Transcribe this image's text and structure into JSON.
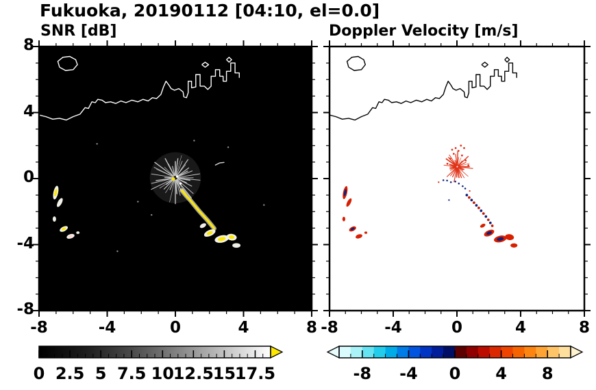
{
  "title": "Fukuoka, 20190112 [04:10, el=0.0]",
  "coastline_km": [
    [
      [
        -6.8,
        6.75
      ],
      [
        -6.9,
        7.1
      ],
      [
        -6.6,
        7.35
      ],
      [
        -6.2,
        7.4
      ],
      [
        -5.85,
        7.2
      ],
      [
        -5.75,
        6.9
      ],
      [
        -6.0,
        6.6
      ],
      [
        -6.45,
        6.55
      ],
      [
        -6.8,
        6.75
      ]
    ],
    [
      [
        -8.0,
        3.85
      ],
      [
        -7.6,
        3.75
      ],
      [
        -7.2,
        3.6
      ],
      [
        -6.8,
        3.65
      ],
      [
        -6.4,
        3.55
      ],
      [
        -6.0,
        3.75
      ],
      [
        -5.6,
        3.9
      ],
      [
        -5.3,
        4.3
      ],
      [
        -5.1,
        4.25
      ],
      [
        -4.9,
        4.65
      ],
      [
        -4.7,
        4.6
      ],
      [
        -4.55,
        4.8
      ],
      [
        -4.3,
        4.75
      ],
      [
        -4.1,
        4.6
      ],
      [
        -3.8,
        4.65
      ],
      [
        -3.5,
        4.55
      ],
      [
        -3.2,
        4.7
      ],
      [
        -2.9,
        4.6
      ],
      [
        -2.55,
        4.75
      ],
      [
        -2.2,
        4.65
      ],
      [
        -1.9,
        4.8
      ],
      [
        -1.6,
        4.7
      ],
      [
        -1.35,
        4.9
      ],
      [
        -1.1,
        4.85
      ],
      [
        -0.85,
        5.1
      ],
      [
        -0.7,
        5.55
      ],
      [
        -0.55,
        5.9
      ],
      [
        -0.4,
        5.7
      ],
      [
        -0.25,
        5.45
      ],
      [
        -0.05,
        5.35
      ],
      [
        0.2,
        5.45
      ],
      [
        0.45,
        5.25
      ],
      [
        0.5,
        4.95
      ],
      [
        0.65,
        4.9
      ],
      [
        0.75,
        5.2
      ],
      [
        0.75,
        5.9
      ],
      [
        0.95,
        5.9
      ],
      [
        0.95,
        5.5
      ],
      [
        1.2,
        5.55
      ],
      [
        1.2,
        6.3
      ],
      [
        1.45,
        6.3
      ],
      [
        1.45,
        5.6
      ],
      [
        1.7,
        5.6
      ],
      [
        1.9,
        5.4
      ],
      [
        2.1,
        5.6
      ],
      [
        2.1,
        6.2
      ],
      [
        2.35,
        6.2
      ],
      [
        2.35,
        6.6
      ],
      [
        2.6,
        6.6
      ],
      [
        2.6,
        6.2
      ],
      [
        2.8,
        6.2
      ],
      [
        2.8,
        5.9
      ],
      [
        3.0,
        5.9
      ],
      [
        3.0,
        6.5
      ],
      [
        3.25,
        6.5
      ],
      [
        3.25,
        7.0
      ],
      [
        3.5,
        7.0
      ],
      [
        3.5,
        6.4
      ],
      [
        3.75,
        6.4
      ],
      [
        3.75,
        6.1
      ]
    ],
    [
      [
        1.55,
        6.9
      ],
      [
        1.75,
        7.05
      ],
      [
        1.95,
        6.9
      ],
      [
        1.75,
        6.75
      ],
      [
        1.55,
        6.9
      ]
    ],
    [
      [
        3.0,
        7.2
      ],
      [
        3.15,
        7.35
      ],
      [
        3.3,
        7.2
      ],
      [
        3.15,
        7.05
      ],
      [
        3.0,
        7.2
      ]
    ]
  ],
  "chart_data": [
    {
      "id": "snr",
      "type": "heatmap",
      "title": "SNR [dB]",
      "xlim": [
        -8,
        8
      ],
      "ylim": [
        -8,
        8
      ],
      "xticks": [
        -8,
        -4,
        0,
        4,
        8
      ],
      "xtick_labels": [
        "-8",
        "-4",
        "0",
        "4",
        "8"
      ],
      "yticks": [
        -8,
        -4,
        0,
        4,
        8
      ],
      "ytick_labels": [
        "-8",
        "-4",
        "0",
        "4",
        "8"
      ],
      "grid": false,
      "background": "#000000",
      "coast_color": "#ffffff",
      "colorbar": {
        "range": [
          0,
          18.75
        ],
        "major_ticks": [
          0,
          2.5,
          5,
          7.5,
          10,
          12.5,
          15,
          17.5
        ],
        "labels": [
          "0",
          "2.5",
          "5",
          "7.5",
          "10",
          "12.5",
          "15",
          "17.5"
        ],
        "minor_step": 0.625,
        "stops": [
          "#000000",
          "#1c1c1c",
          "#4a4a4a",
          "#848484",
          "#c2c2c2",
          "#ffffff"
        ],
        "arrow_right": "#ffe800"
      },
      "features": [
        {
          "type": "halo",
          "x": 0,
          "y": 0.05,
          "r": 1.5,
          "color": "rgba(140,140,140,0.18)"
        },
        {
          "type": "starburst",
          "x": 0,
          "y": 0.05,
          "rays": 40,
          "r_in": 0.12,
          "r_out": 1.6,
          "width": 1.1,
          "color": "#c4c4c4",
          "seed": 11
        },
        {
          "type": "dots",
          "r": 0.1,
          "color": "#ffe800",
          "pts": [
            [
              -0.12,
              -0.02
            ]
          ]
        },
        {
          "type": "dots",
          "r": 0.07,
          "color": "#ffffff",
          "pts": [
            [
              0.1,
              0.12
            ],
            [
              0.3,
              -0.3
            ]
          ]
        },
        {
          "type": "polyline",
          "color": "#ffe800",
          "halo": "#e8e8e0",
          "width": 3,
          "pts": [
            [
              0.38,
              -0.72
            ],
            [
              0.62,
              -1.02
            ],
            [
              0.88,
              -1.32
            ],
            [
              1.12,
              -1.62
            ],
            [
              1.38,
              -1.95
            ],
            [
              1.62,
              -2.22
            ],
            [
              1.88,
              -2.52
            ],
            [
              2.12,
              -2.82
            ],
            [
              2.28,
              -3.02
            ]
          ]
        },
        {
          "type": "blob",
          "x": 2.02,
          "y": -3.3,
          "rx": 0.36,
          "ry": 0.18,
          "rot": -25,
          "fill": "#f2f2ea",
          "core": "#ffe800"
        },
        {
          "type": "blob",
          "x": 2.72,
          "y": -3.66,
          "rx": 0.42,
          "ry": 0.22,
          "rot": -12,
          "fill": "#f2f2ea",
          "core": "#ffe800"
        },
        {
          "type": "blob",
          "x": 3.3,
          "y": -3.55,
          "rx": 0.3,
          "ry": 0.2,
          "rot": 8,
          "fill": "#f2f2ea",
          "core": "#ffe800"
        },
        {
          "type": "blob",
          "x": 3.58,
          "y": -4.05,
          "rx": 0.24,
          "ry": 0.14,
          "rot": 0,
          "fill": "#eeeee6"
        },
        {
          "type": "blob",
          "x": 1.62,
          "y": -2.85,
          "rx": 0.2,
          "ry": 0.12,
          "rot": -30,
          "fill": "#eeeee6"
        },
        {
          "type": "blob",
          "x": -7.02,
          "y": -0.85,
          "rx": 0.14,
          "ry": 0.42,
          "rot": 12,
          "fill": "#f2f2ea",
          "core": "#ffe800"
        },
        {
          "type": "blob",
          "x": -6.78,
          "y": -1.45,
          "rx": 0.12,
          "ry": 0.3,
          "rot": 28,
          "fill": "#f2f2ea"
        },
        {
          "type": "blob",
          "x": -7.1,
          "y": -2.45,
          "rx": 0.1,
          "ry": 0.16,
          "rot": 0,
          "fill": "#eeeee6"
        },
        {
          "type": "blob",
          "x": -6.55,
          "y": -3.05,
          "rx": 0.26,
          "ry": 0.14,
          "rot": -28,
          "fill": "#f2f2ea",
          "core": "#ffe800"
        },
        {
          "type": "blob",
          "x": -6.15,
          "y": -3.5,
          "rx": 0.24,
          "ry": 0.13,
          "rot": -18,
          "fill": "#f2f2ea",
          "core": "#ffd2d2"
        },
        {
          "type": "blob",
          "x": -5.72,
          "y": -3.28,
          "rx": 0.1,
          "ry": 0.08,
          "rot": 0,
          "fill": "#eeeee6"
        },
        {
          "type": "polyline",
          "color": "#cccccc",
          "width": 1.5,
          "pts": [
            [
              2.35,
              0.82
            ],
            [
              2.6,
              0.95
            ],
            [
              2.85,
              0.98
            ]
          ]
        },
        {
          "type": "dots",
          "r": 0.05,
          "color": "#8a8a8a",
          "pts": [
            [
              -1.4,
              -2.2
            ],
            [
              -2.2,
              -1.4
            ],
            [
              3.1,
              1.9
            ],
            [
              -3.4,
              -4.4
            ],
            [
              1.1,
              2.3
            ],
            [
              -4.6,
              2.1
            ],
            [
              5.2,
              -1.6
            ]
          ]
        }
      ]
    },
    {
      "id": "doppler",
      "type": "heatmap",
      "title": "Doppler Velocity [m/s]",
      "xlim": [
        -8,
        8
      ],
      "ylim": [
        -8,
        8
      ],
      "xticks": [
        -8,
        -4,
        0,
        4,
        8
      ],
      "xtick_labels": [
        "-8",
        "-4",
        "0",
        "4",
        "8"
      ],
      "yticks": [
        -8,
        -4,
        0,
        4,
        8
      ],
      "ytick_labels": [],
      "grid": false,
      "background": "#ffffff",
      "coast_color": "#000000",
      "colorbar": {
        "range": [
          -10,
          10
        ],
        "major_ticks": [
          -8,
          -4,
          0,
          4,
          8
        ],
        "labels": [
          "-8",
          "-4",
          "0",
          "4",
          "8"
        ],
        "minor_step": 1,
        "blocks": [
          "#d9fbfd",
          "#a8f2f8",
          "#66e3f2",
          "#24ccec",
          "#00ace8",
          "#007ce8",
          "#0054e0",
          "#0034c4",
          "#001d9c",
          "#000e66",
          "#5c0000",
          "#900000",
          "#bc0c00",
          "#dc2800",
          "#ee4400",
          "#f66400",
          "#fc8410",
          "#ffa434",
          "#ffc468",
          "#ffdf9e"
        ],
        "arrow_left": "#eafdfe",
        "arrow_right": "#fff3d0"
      },
      "features": [
        {
          "type": "starburst",
          "x": 0.02,
          "y": 0.72,
          "rays": 30,
          "r_in": 0.05,
          "r_out": 1.0,
          "width": 1.2,
          "color": "#e03318",
          "seed": 5
        },
        {
          "type": "dots",
          "r": 0.06,
          "color": "#e03318",
          "pts": [
            [
              -0.2,
              1.5
            ],
            [
              0.1,
              1.68
            ],
            [
              0.32,
              1.4
            ],
            [
              -0.42,
              1.2
            ],
            [
              0.55,
              1.1
            ],
            [
              -0.08,
              1.85
            ],
            [
              0.72,
              0.8
            ],
            [
              -0.6,
              0.9
            ],
            [
              0.25,
              2.0
            ],
            [
              -0.3,
              1.75
            ],
            [
              0.45,
              1.85
            ]
          ]
        },
        {
          "type": "dots",
          "r": 0.055,
          "color": "#10207a",
          "pts": [
            [
              -0.62,
              -0.12
            ],
            [
              -0.38,
              -0.22
            ],
            [
              0.12,
              -0.3
            ],
            [
              0.36,
              -0.46
            ],
            [
              0.52,
              -0.6
            ],
            [
              -0.1,
              -0.18
            ],
            [
              -0.85,
              -0.1
            ]
          ]
        },
        {
          "type": "dots",
          "r": 0.05,
          "color": "#e03318",
          "pts": [
            [
              -1.15,
              -0.22
            ],
            [
              0.8,
              -0.75
            ]
          ]
        },
        {
          "type": "dots",
          "r": 0.08,
          "color": "#10207a",
          "pts": [
            [
              0.62,
              -1.0
            ],
            [
              0.92,
              -1.3
            ],
            [
              1.22,
              -1.62
            ],
            [
              1.52,
              -1.95
            ],
            [
              1.82,
              -2.3
            ],
            [
              2.1,
              -2.68
            ]
          ]
        },
        {
          "type": "dots",
          "r": 0.08,
          "color": "#c81800",
          "pts": [
            [
              0.77,
              -1.15
            ],
            [
              1.07,
              -1.46
            ],
            [
              1.37,
              -1.78
            ],
            [
              1.67,
              -2.12
            ],
            [
              1.97,
              -2.5
            ],
            [
              2.22,
              -2.86
            ]
          ]
        },
        {
          "type": "blob",
          "x": 2.02,
          "y": -3.3,
          "rx": 0.34,
          "ry": 0.17,
          "rot": -25,
          "fill": "#d81f00",
          "core": "#10207a"
        },
        {
          "type": "blob",
          "x": 2.72,
          "y": -3.66,
          "rx": 0.4,
          "ry": 0.2,
          "rot": -12,
          "fill": "#d81f00",
          "core": "#10207a"
        },
        {
          "type": "blob",
          "x": 3.3,
          "y": -3.55,
          "rx": 0.28,
          "ry": 0.18,
          "rot": 8,
          "fill": "#d81f00"
        },
        {
          "type": "blob",
          "x": 3.58,
          "y": -4.05,
          "rx": 0.22,
          "ry": 0.13,
          "rot": 0,
          "fill": "#d81f00"
        },
        {
          "type": "blob",
          "x": 1.62,
          "y": -2.85,
          "rx": 0.18,
          "ry": 0.1,
          "rot": -30,
          "fill": "#d81f00"
        },
        {
          "type": "blob",
          "x": -7.02,
          "y": -0.85,
          "rx": 0.13,
          "ry": 0.4,
          "rot": 12,
          "fill": "#d81f00",
          "core": "#10207a"
        },
        {
          "type": "blob",
          "x": -6.78,
          "y": -1.45,
          "rx": 0.11,
          "ry": 0.28,
          "rot": 28,
          "fill": "#d81f00"
        },
        {
          "type": "blob",
          "x": -7.1,
          "y": -2.45,
          "rx": 0.09,
          "ry": 0.14,
          "rot": 0,
          "fill": "#d81f00"
        },
        {
          "type": "blob",
          "x": -6.55,
          "y": -3.05,
          "rx": 0.24,
          "ry": 0.13,
          "rot": -28,
          "fill": "#d81f00",
          "core": "#10207a"
        },
        {
          "type": "blob",
          "x": -6.15,
          "y": -3.5,
          "rx": 0.22,
          "ry": 0.12,
          "rot": -18,
          "fill": "#d81f00"
        },
        {
          "type": "blob",
          "x": -5.72,
          "y": -3.28,
          "rx": 0.09,
          "ry": 0.07,
          "rot": 0,
          "fill": "#d81f00"
        },
        {
          "type": "dots",
          "r": 0.05,
          "color": "#10207a",
          "pts": [
            [
              -0.5,
              -1.3
            ]
          ]
        }
      ]
    }
  ]
}
